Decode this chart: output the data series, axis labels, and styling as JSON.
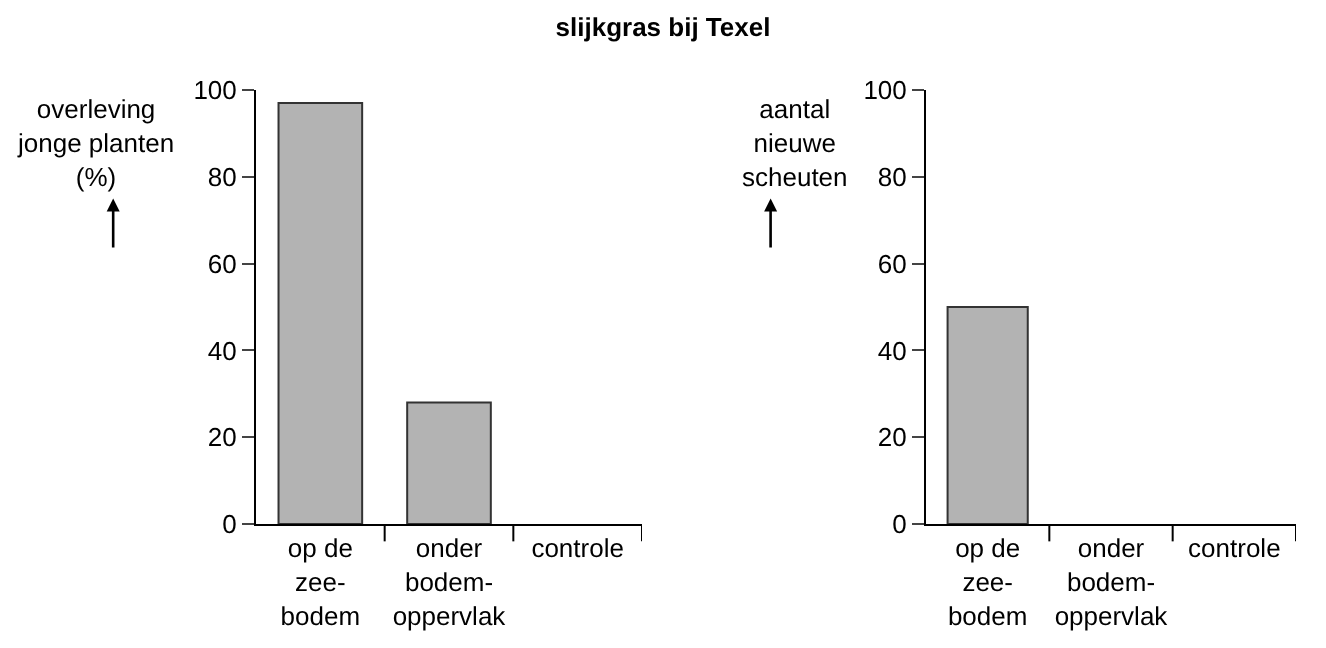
{
  "chart_data": [
    {
      "type": "bar",
      "title": "slijkgras bij Texel",
      "ylabel": "overleving\njonge planten\n(%)",
      "categories": [
        "op de\nzee-\nbodem",
        "onder\nbodem-\noppervlak",
        "controle"
      ],
      "values": [
        97,
        28,
        0
      ],
      "color": "#b3b3b3",
      "ylim": [
        0,
        100
      ],
      "yticks": [
        0,
        20,
        40,
        60,
        80,
        100
      ],
      "grid": false,
      "legend": false
    },
    {
      "type": "bar",
      "ylabel": "aantal\nnieuwe\nscheuten",
      "categories": [
        "op de\nzee-\nbodem",
        "onder\nbodem-\noppervlak",
        "controle"
      ],
      "values": [
        50,
        0,
        0
      ],
      "color": "#b3b3b3",
      "ylim": [
        0,
        100
      ],
      "yticks": [
        0,
        20,
        40,
        60,
        80,
        100
      ],
      "grid": false,
      "legend": false
    }
  ]
}
